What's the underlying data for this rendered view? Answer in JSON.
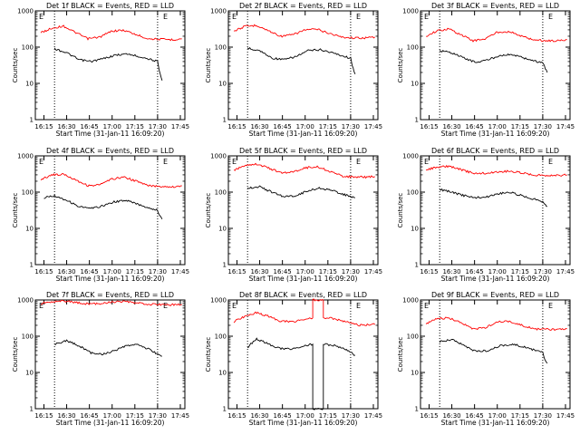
{
  "chart_data": [
    {
      "type": "line",
      "title": "Det 1f BLACK = Events, RED = LLD",
      "xlabel": "Start Time (31-Jan-11 16:09:20)",
      "ylabel": "Counts/sec",
      "yscale": "log",
      "ylim": [
        1,
        1000
      ],
      "xlim": [
        "16:09:20",
        "17:48:00"
      ],
      "x_ticks": [
        "16:15",
        "16:30",
        "16:45",
        "17:00",
        "17:15",
        "17:30",
        "17:45"
      ],
      "y_ticks": [
        "1",
        "10",
        "100",
        "1000"
      ],
      "vlines": [
        "16:22",
        "17:30"
      ],
      "marker": "E",
      "series": [
        {
          "color": "#ff0000",
          "x": [
            "16:13",
            "16:20",
            "16:28",
            "16:36",
            "16:44",
            "16:52",
            "17:00",
            "17:08",
            "17:16",
            "17:24",
            "17:32",
            "17:40",
            "17:46"
          ],
          "y": [
            250,
            330,
            380,
            250,
            170,
            190,
            280,
            290,
            220,
            170,
            165,
            160,
            170
          ]
        },
        {
          "color": "#000000",
          "x": [
            "16:22",
            "16:30",
            "16:38",
            "16:46",
            "16:54",
            "17:02",
            "17:10",
            "17:18",
            "17:26",
            "17:30",
            "17:31",
            "17:33"
          ],
          "y": [
            90,
            70,
            45,
            40,
            48,
            60,
            65,
            55,
            45,
            40,
            22,
            12
          ]
        }
      ]
    },
    {
      "type": "line",
      "title": "Det 2f BLACK = Events, RED = LLD",
      "xlabel": "Start Time (31-Jan-11 16:09:20)",
      "ylabel": "Counts/sec",
      "yscale": "log",
      "ylim": [
        1,
        1000
      ],
      "xlim": [
        "16:09:20",
        "17:48:00"
      ],
      "x_ticks": [
        "16:15",
        "16:30",
        "16:45",
        "17:00",
        "17:15",
        "17:30",
        "17:45"
      ],
      "y_ticks": [
        "1",
        "10",
        "100",
        "1000"
      ],
      "vlines": [
        "16:22",
        "17:30"
      ],
      "marker": "E",
      "series": [
        {
          "color": "#ff0000",
          "x": [
            "16:13",
            "16:20",
            "16:28",
            "16:36",
            "16:44",
            "16:52",
            "17:00",
            "17:08",
            "17:16",
            "17:24",
            "17:32",
            "17:40",
            "17:46"
          ],
          "y": [
            280,
            370,
            400,
            280,
            200,
            220,
            300,
            310,
            240,
            190,
            180,
            180,
            190
          ]
        },
        {
          "color": "#000000",
          "x": [
            "16:22",
            "16:30",
            "16:38",
            "16:46",
            "16:54",
            "17:02",
            "17:10",
            "17:18",
            "17:26",
            "17:30",
            "17:31",
            "17:33"
          ],
          "y": [
            95,
            80,
            50,
            45,
            55,
            80,
            85,
            70,
            55,
            50,
            30,
            18
          ]
        }
      ]
    },
    {
      "type": "line",
      "title": "Det 3f BLACK = Events, RED = LLD",
      "xlabel": "Start Time (31-Jan-11 16:09:20)",
      "ylabel": "Counts/sec",
      "yscale": "log",
      "ylim": [
        1,
        1000
      ],
      "xlim": [
        "16:09:20",
        "17:48:00"
      ],
      "x_ticks": [
        "16:15",
        "16:30",
        "16:45",
        "17:00",
        "17:15",
        "17:30",
        "17:45"
      ],
      "y_ticks": [
        "1",
        "10",
        "100",
        "1000"
      ],
      "vlines": [
        "16:22",
        "17:30"
      ],
      "marker": "E",
      "series": [
        {
          "color": "#ff0000",
          "x": [
            "16:13",
            "16:20",
            "16:28",
            "16:36",
            "16:44",
            "16:52",
            "17:00",
            "17:08",
            "17:16",
            "17:24",
            "17:32",
            "17:40",
            "17:46"
          ],
          "y": [
            200,
            280,
            320,
            220,
            150,
            170,
            260,
            270,
            200,
            160,
            150,
            150,
            160
          ]
        },
        {
          "color": "#000000",
          "x": [
            "16:22",
            "16:30",
            "16:38",
            "16:46",
            "16:54",
            "17:02",
            "17:10",
            "17:18",
            "17:26",
            "17:30",
            "17:31",
            "17:33"
          ],
          "y": [
            80,
            70,
            50,
            38,
            45,
            60,
            62,
            50,
            40,
            38,
            30,
            20
          ]
        }
      ]
    },
    {
      "type": "line",
      "title": "Det 4f BLACK = Events, RED = LLD",
      "xlabel": "Start Time (31-Jan-11 16:09:20)",
      "ylabel": "Counts/sec",
      "yscale": "log",
      "ylim": [
        1,
        1000
      ],
      "xlim": [
        "16:09:20",
        "17:48:00"
      ],
      "x_ticks": [
        "16:15",
        "16:30",
        "16:45",
        "17:00",
        "17:15",
        "17:30",
        "17:45"
      ],
      "y_ticks": [
        "1",
        "10",
        "100",
        "1000"
      ],
      "vlines": [
        "16:22",
        "17:30"
      ],
      "marker": "E",
      "series": [
        {
          "color": "#ff0000",
          "x": [
            "16:13",
            "16:20",
            "16:28",
            "16:36",
            "16:44",
            "16:52",
            "17:00",
            "17:08",
            "17:16",
            "17:24",
            "17:32",
            "17:40",
            "17:46"
          ],
          "y": [
            220,
            300,
            310,
            220,
            150,
            160,
            230,
            260,
            200,
            150,
            145,
            140,
            150
          ]
        },
        {
          "color": "#000000",
          "x": [
            "16:15",
            "16:22",
            "16:30",
            "16:38",
            "16:46",
            "16:54",
            "17:02",
            "17:10",
            "17:18",
            "17:26",
            "17:30",
            "17:31",
            "17:33"
          ],
          "y": [
            70,
            80,
            60,
            40,
            35,
            42,
            55,
            58,
            45,
            35,
            32,
            25,
            18
          ]
        }
      ]
    },
    {
      "type": "line",
      "title": "Det 5f BLACK = Events, RED = LLD",
      "xlabel": "Start Time (31-Jan-11 16:09:20)",
      "ylabel": "Counts/sec",
      "yscale": "log",
      "ylim": [
        1,
        1000
      ],
      "xlim": [
        "16:09:20",
        "17:48:00"
      ],
      "x_ticks": [
        "16:15",
        "16:30",
        "16:45",
        "17:00",
        "17:15",
        "17:30",
        "17:45"
      ],
      "y_ticks": [
        "1",
        "10",
        "100",
        "1000"
      ],
      "vlines": [
        "16:22",
        "17:30"
      ],
      "marker": "E",
      "series": [
        {
          "color": "#ff0000",
          "x": [
            "16:13",
            "16:20",
            "16:28",
            "16:36",
            "16:44",
            "16:52",
            "17:00",
            "17:08",
            "17:16",
            "17:24",
            "17:32",
            "17:40",
            "17:46"
          ],
          "y": [
            400,
            550,
            600,
            460,
            340,
            360,
            470,
            500,
            380,
            280,
            260,
            260,
            270
          ]
        },
        {
          "color": "#000000",
          "x": [
            "16:22",
            "16:30",
            "16:38",
            "16:46",
            "16:54",
            "17:02",
            "17:10",
            "17:18",
            "17:26",
            "17:30",
            "17:33"
          ],
          "y": [
            130,
            140,
            100,
            75,
            80,
            110,
            130,
            110,
            85,
            75,
            70
          ]
        }
      ]
    },
    {
      "type": "line",
      "title": "Det 6f BLACK = Events, RED = LLD",
      "xlabel": "Start Time (31-Jan-11 16:09:20)",
      "ylabel": "Counts/sec",
      "yscale": "log",
      "ylim": [
        1,
        1000
      ],
      "xlim": [
        "16:09:20",
        "17:48:00"
      ],
      "x_ticks": [
        "16:15",
        "16:30",
        "16:45",
        "17:00",
        "17:15",
        "17:30",
        "17:45"
      ],
      "y_ticks": [
        "1",
        "10",
        "100",
        "1000"
      ],
      "vlines": [
        "16:22",
        "17:30"
      ],
      "marker": "E",
      "series": [
        {
          "color": "#ff0000",
          "x": [
            "16:13",
            "16:20",
            "16:28",
            "16:36",
            "16:44",
            "16:52",
            "17:00",
            "17:08",
            "17:16",
            "17:24",
            "17:32",
            "17:40",
            "17:46"
          ],
          "y": [
            420,
            480,
            520,
            420,
            330,
            330,
            360,
            380,
            340,
            300,
            290,
            290,
            300
          ]
        },
        {
          "color": "#000000",
          "x": [
            "16:22",
            "16:30",
            "16:38",
            "16:46",
            "16:54",
            "17:00",
            "17:08",
            "17:16",
            "17:24",
            "17:30",
            "17:31",
            "17:33"
          ],
          "y": [
            120,
            100,
            80,
            70,
            75,
            90,
            100,
            80,
            65,
            55,
            50,
            40
          ]
        }
      ]
    },
    {
      "type": "line",
      "title": "Det 7f BLACK = Events, RED = LLD",
      "xlabel": "Start Time (31-Jan-11 16:09:20)",
      "ylabel": "Counts/sec",
      "yscale": "log",
      "ylim": [
        1,
        1000
      ],
      "xlim": [
        "16:09:20",
        "17:48:00"
      ],
      "x_ticks": [
        "16:15",
        "16:30",
        "16:45",
        "17:00",
        "17:15",
        "17:30",
        "17:45"
      ],
      "y_ticks": [
        "1",
        "10",
        "100",
        "1000"
      ],
      "vlines": [
        "16:22",
        "17:30"
      ],
      "marker": "E",
      "series": [
        {
          "color": "#ff0000",
          "x": [
            "16:13",
            "16:20",
            "16:28",
            "16:36",
            "16:44",
            "16:52",
            "17:00",
            "17:08",
            "17:16",
            "17:24",
            "17:32",
            "17:40",
            "17:46"
          ],
          "y": [
            800,
            900,
            950,
            850,
            780,
            800,
            880,
            900,
            820,
            760,
            750,
            740,
            760
          ]
        },
        {
          "color": "#000000",
          "x": [
            "16:22",
            "16:30",
            "16:38",
            "16:46",
            "16:54",
            "17:02",
            "17:10",
            "17:18",
            "17:26",
            "17:30",
            "17:33"
          ],
          "y": [
            60,
            75,
            55,
            35,
            32,
            40,
            55,
            58,
            40,
            32,
            28
          ]
        }
      ]
    },
    {
      "type": "line",
      "title": "Det 8f BLACK = Events, RED = LLD",
      "xlabel": "Start Time (31-Jan-11 16:09:20)",
      "ylabel": "Counts/sec",
      "yscale": "log",
      "ylim": [
        1,
        1000
      ],
      "xlim": [
        "16:09:20",
        "17:48:00"
      ],
      "x_ticks": [
        "16:15",
        "16:30",
        "16:45",
        "17:00",
        "17:15",
        "17:30",
        "17:45"
      ],
      "y_ticks": [
        "1",
        "10",
        "100",
        "1000"
      ],
      "vlines": [
        "16:22",
        "17:30"
      ],
      "marker": "E",
      "series": [
        {
          "color": "#ff0000",
          "x": [
            "16:13",
            "16:20",
            "16:28",
            "16:36",
            "16:44",
            "16:52",
            "17:00",
            "17:05",
            "17:05",
            "17:12",
            "17:12",
            "17:20",
            "17:28",
            "17:36",
            "17:46"
          ],
          "y": [
            250,
            350,
            450,
            350,
            260,
            250,
            300,
            320,
            1000,
            1000,
            330,
            300,
            240,
            200,
            210
          ]
        },
        {
          "color": "#000000",
          "x": [
            "16:22",
            "16:28",
            "16:36",
            "16:44",
            "16:52",
            "17:00",
            "17:05",
            "17:05",
            "17:12",
            "17:12",
            "17:20",
            "17:28",
            "17:33"
          ],
          "y": [
            50,
            85,
            60,
            45,
            45,
            55,
            60,
            0,
            0,
            60,
            55,
            40,
            30
          ]
        }
      ]
    },
    {
      "type": "line",
      "title": "Det 9f BLACK = Events, RED = LLD",
      "xlabel": "Start Time (31-Jan-11 16:09:20)",
      "ylabel": "Counts/sec",
      "yscale": "log",
      "ylim": [
        1,
        1000
      ],
      "xlim": [
        "16:09:20",
        "17:48:00"
      ],
      "x_ticks": [
        "16:15",
        "16:30",
        "16:45",
        "17:00",
        "17:15",
        "17:30",
        "17:45"
      ],
      "y_ticks": [
        "1",
        "10",
        "100",
        "1000"
      ],
      "vlines": [
        "16:22",
        "17:30"
      ],
      "marker": "E",
      "series": [
        {
          "color": "#ff0000",
          "x": [
            "16:13",
            "16:20",
            "16:28",
            "16:36",
            "16:44",
            "16:52",
            "17:00",
            "17:08",
            "17:16",
            "17:24",
            "17:32",
            "17:40",
            "17:46"
          ],
          "y": [
            220,
            300,
            320,
            230,
            160,
            170,
            250,
            260,
            200,
            160,
            155,
            150,
            160
          ]
        },
        {
          "color": "#000000",
          "x": [
            "16:22",
            "16:30",
            "16:38",
            "16:46",
            "16:54",
            "17:02",
            "17:10",
            "17:18",
            "17:26",
            "17:30",
            "17:31",
            "17:33"
          ],
          "y": [
            70,
            80,
            55,
            38,
            40,
            55,
            60,
            50,
            40,
            35,
            25,
            18
          ]
        }
      ]
    }
  ]
}
